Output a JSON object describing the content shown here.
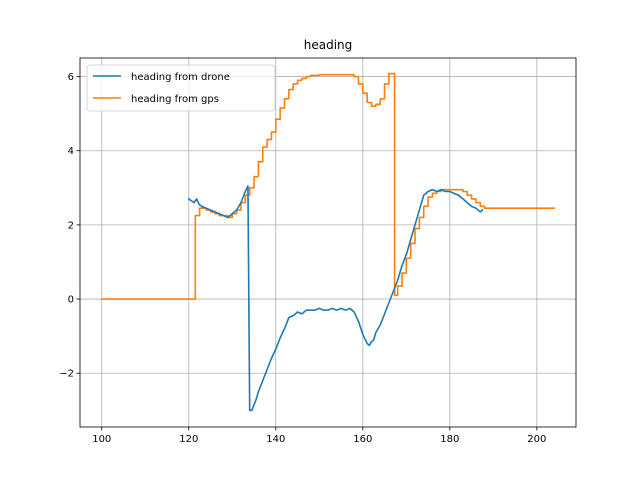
{
  "chart_data": {
    "type": "line",
    "title": "heading",
    "xlabel": "",
    "ylabel": "",
    "xlim": [
      95,
      209
    ],
    "ylim": [
      -3.45,
      6.5
    ],
    "xticks": [
      100,
      120,
      140,
      160,
      180,
      200
    ],
    "yticks": [
      -2,
      0,
      2,
      4,
      6
    ],
    "xtick_labels": [
      "100",
      "120",
      "140",
      "160",
      "180",
      "200"
    ],
    "ytick_labels": [
      "−2",
      "0",
      "2",
      "4",
      "6"
    ],
    "grid": true,
    "legend_position": "upper-left",
    "series": [
      {
        "name": "heading from drone",
        "color": "#1f77b4",
        "step": false,
        "x": [
          120,
          120.6,
          121.2,
          121.8,
          122.4,
          123,
          124,
          125,
          126,
          127,
          128,
          129,
          130,
          131,
          132,
          133,
          133.6,
          134,
          134.5,
          135,
          135.5,
          136,
          137,
          138,
          139,
          140,
          141,
          142,
          143,
          144,
          145,
          146,
          147,
          148,
          149,
          150,
          151,
          152,
          153,
          154,
          155,
          156,
          157,
          158,
          159,
          160,
          161,
          161.5,
          162,
          162.5,
          163,
          164,
          165,
          166,
          167,
          168,
          169,
          170,
          171,
          172,
          173,
          174,
          175,
          176,
          177,
          178,
          179,
          180,
          181,
          182,
          183,
          184,
          185,
          186,
          187,
          187.5
        ],
        "y": [
          2.7,
          2.65,
          2.6,
          2.7,
          2.55,
          2.5,
          2.45,
          2.4,
          2.35,
          2.3,
          2.25,
          2.2,
          2.3,
          2.4,
          2.6,
          2.9,
          3.05,
          -3.0,
          -3.0,
          -2.85,
          -2.7,
          -2.5,
          -2.2,
          -1.9,
          -1.6,
          -1.35,
          -1.05,
          -0.8,
          -0.5,
          -0.45,
          -0.35,
          -0.4,
          -0.3,
          -0.3,
          -0.3,
          -0.25,
          -0.3,
          -0.3,
          -0.25,
          -0.3,
          -0.25,
          -0.3,
          -0.25,
          -0.35,
          -0.6,
          -0.95,
          -1.2,
          -1.25,
          -1.15,
          -1.1,
          -0.9,
          -0.7,
          -0.4,
          -0.1,
          0.2,
          0.5,
          0.9,
          1.2,
          1.6,
          2.0,
          2.4,
          2.8,
          2.9,
          2.95,
          2.9,
          2.95,
          2.9,
          2.9,
          2.85,
          2.8,
          2.7,
          2.6,
          2.5,
          2.45,
          2.35,
          2.4
        ]
      },
      {
        "name": "heading from gps",
        "color": "#ff7f0e",
        "step": true,
        "x": [
          100,
          121.5,
          122.5,
          124,
          125,
          126,
          127,
          128,
          129,
          130,
          131,
          132,
          133,
          134,
          135,
          136,
          137,
          138,
          139,
          140,
          141,
          142,
          143,
          144,
          145,
          146,
          147,
          148,
          150,
          156,
          158,
          159,
          160,
          161,
          162,
          163,
          164,
          165,
          166,
          167.3,
          168,
          169,
          170,
          171,
          172,
          173,
          174,
          175,
          176,
          177,
          178,
          180,
          183,
          184,
          185,
          186,
          187,
          188,
          204
        ],
        "y": [
          0.0,
          2.25,
          2.45,
          2.4,
          2.35,
          2.3,
          2.25,
          2.25,
          2.2,
          2.3,
          2.4,
          2.6,
          2.8,
          3.0,
          3.3,
          3.7,
          4.1,
          4.3,
          4.5,
          4.85,
          5.15,
          5.4,
          5.65,
          5.8,
          5.9,
          5.95,
          6.0,
          6.03,
          6.05,
          6.05,
          6.0,
          5.8,
          5.55,
          5.3,
          5.2,
          5.25,
          5.4,
          5.8,
          6.08,
          0.1,
          0.35,
          0.7,
          1.1,
          1.5,
          1.9,
          2.2,
          2.5,
          2.75,
          2.85,
          2.9,
          2.95,
          2.95,
          2.9,
          2.8,
          2.7,
          2.6,
          2.5,
          2.45,
          2.45
        ]
      }
    ]
  }
}
